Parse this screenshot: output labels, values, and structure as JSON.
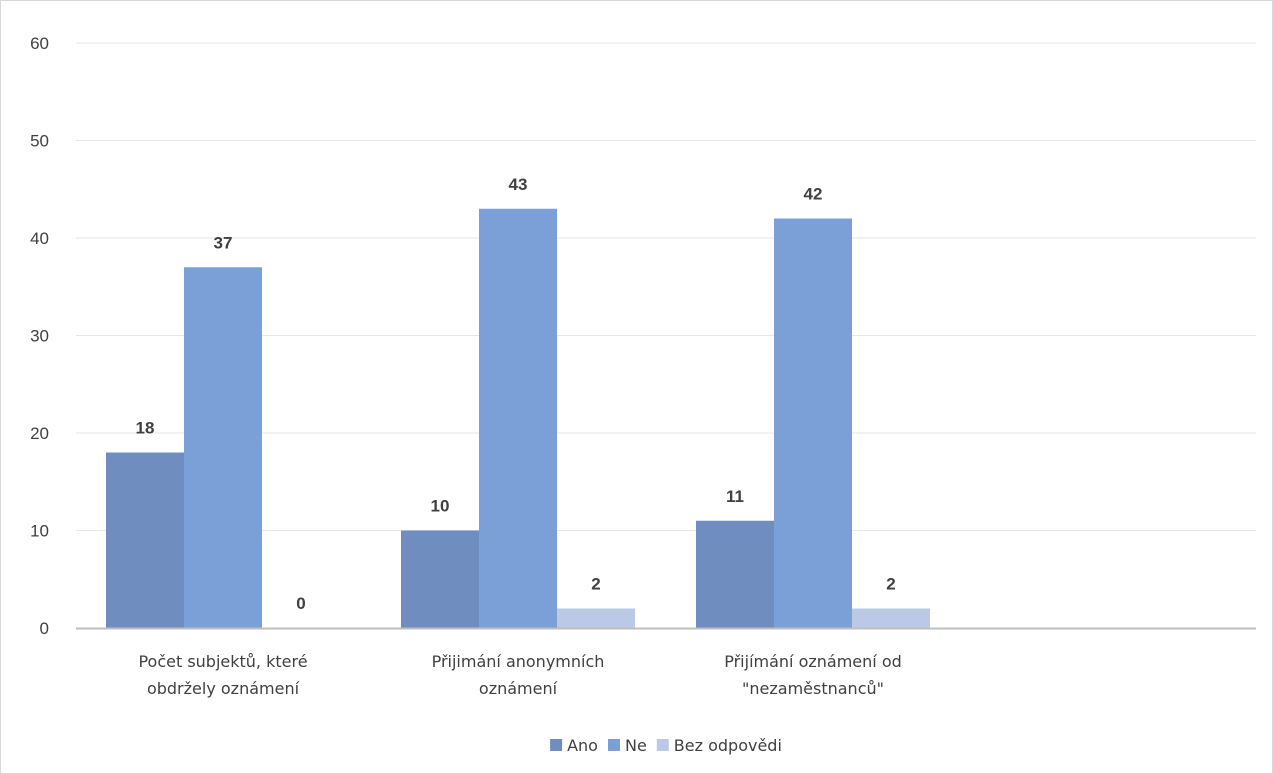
{
  "chart_data": {
    "type": "bar",
    "categories": [
      "Počet subjektů, které obdržely oznámení",
      "Přijimání anonymních oznámení",
      "Přijímání oznámení od \"nezaměstnanců\""
    ],
    "category_lines": [
      [
        "Počet subjektů, které",
        "obdržely oznámení"
      ],
      [
        "Přijimání anonymních",
        "oznámení"
      ],
      [
        "Přijímání oznámení od",
        "\"nezaměstnanců\""
      ]
    ],
    "series": [
      {
        "name": "Ano",
        "values": [
          18,
          10,
          11
        ],
        "color": "#6f8ebf"
      },
      {
        "name": "Ne",
        "values": [
          37,
          43,
          42
        ],
        "color": "#7ba0d8"
      },
      {
        "name": "Bez odpovědi",
        "values": [
          0,
          2,
          2
        ],
        "color": "#bcc9e6"
      }
    ],
    "ylim": [
      0,
      60
    ],
    "yticks": [
      0,
      10,
      20,
      30,
      40,
      50,
      60
    ],
    "grid": true,
    "data_labels": true,
    "legend_position": "bottom",
    "title": "",
    "xlabel": "",
    "ylabel": ""
  }
}
